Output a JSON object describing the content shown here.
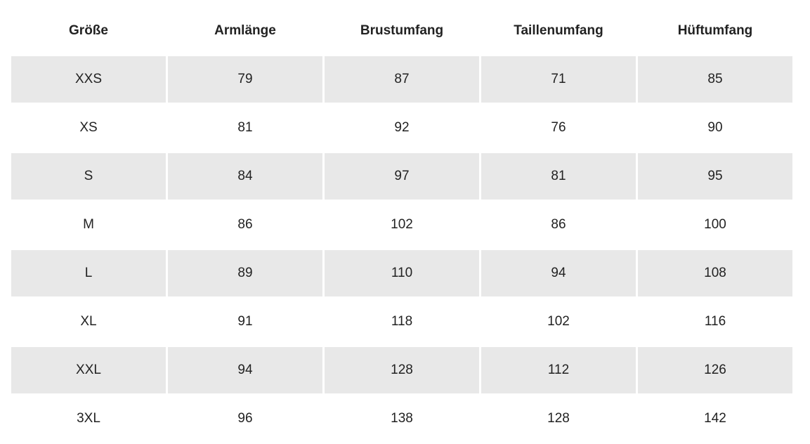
{
  "table": {
    "headers": [
      "Größe",
      "Armlänge",
      "Brustumfang",
      "Taillenumfang",
      "Hüftumfang"
    ],
    "rows": [
      [
        "XXS",
        79,
        87,
        71,
        85
      ],
      [
        "XS",
        81,
        92,
        76,
        90
      ],
      [
        "S",
        84,
        97,
        81,
        95
      ],
      [
        "M",
        86,
        102,
        86,
        100
      ],
      [
        "L",
        89,
        110,
        94,
        108
      ],
      [
        "XL",
        91,
        118,
        102,
        116
      ],
      [
        "XXL",
        94,
        128,
        112,
        126
      ],
      [
        "3XL",
        96,
        138,
        128,
        142
      ]
    ]
  }
}
